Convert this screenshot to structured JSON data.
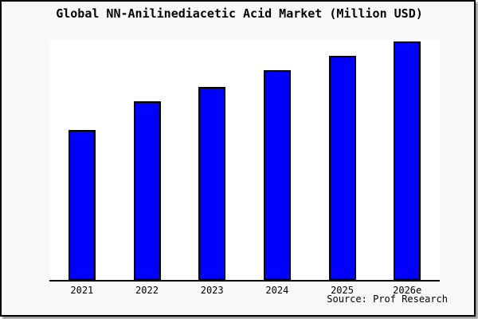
{
  "chart": {
    "title": "Global NN-Anilinediacetic Acid Market (Million USD)",
    "source_caption": "Source: Prof Research"
  },
  "chart_data": {
    "type": "bar",
    "title": "Global NN-Anilinediacetic Acid Market (Million USD)",
    "categories": [
      "2021",
      "2022",
      "2023",
      "2024",
      "2025",
      "2026e"
    ],
    "values": [
      63,
      75,
      81,
      88,
      94,
      100
    ],
    "values_note": "no y-axis scale shown; values estimated as percent of tallest (2026e) bar",
    "xlabel": "",
    "ylabel": "",
    "ylim": [
      0,
      100
    ],
    "grid": false,
    "legend": false,
    "annotations": [
      "Source: Prof Research"
    ],
    "bar_color": "#0000ff",
    "bar_border_color": "#000000",
    "canvas_background": "#f8f8f8",
    "plot_background": "#ffffff",
    "frame_border_color": "#000000",
    "text_color": "#000000"
  }
}
